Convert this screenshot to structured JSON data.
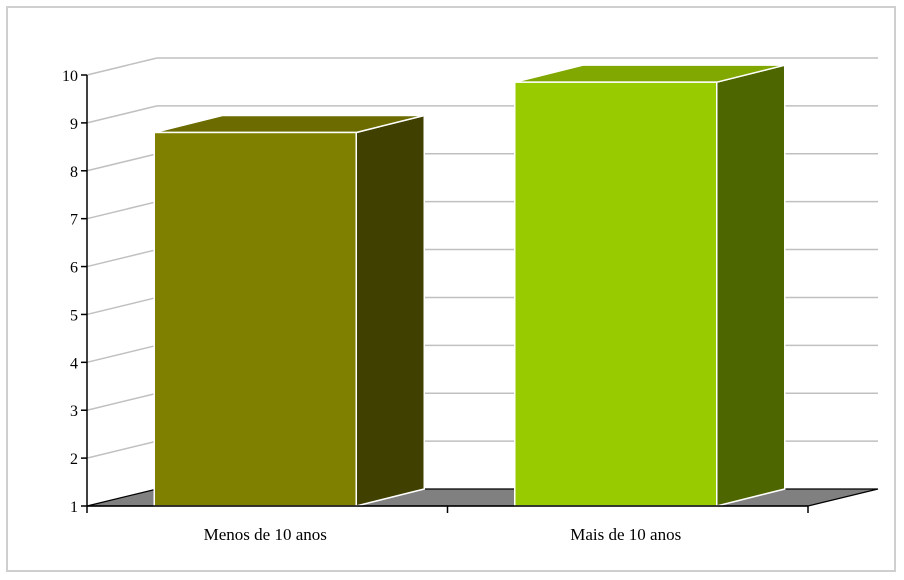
{
  "chart_data": {
    "type": "bar",
    "categories": [
      "Menos de 10 anos",
      "Mais de 10 anos"
    ],
    "values": [
      8.8,
      9.85
    ],
    "ylim": [
      1,
      10
    ],
    "yticks": [
      1,
      2,
      3,
      4,
      5,
      6,
      7,
      8,
      9,
      10
    ],
    "grid": true,
    "legend": "none",
    "title": "",
    "xlabel": "",
    "ylabel": "",
    "colors": {
      "bars_front": [
        "#808000",
        "#99cc00"
      ],
      "bars_side": [
        "#404000",
        "#4d6600"
      ],
      "bars_top": [
        "#6b6b00",
        "#80a800"
      ],
      "floor": "#808080",
      "gridline": "#c0c0c0",
      "frame": "#cfcfcf"
    }
  }
}
